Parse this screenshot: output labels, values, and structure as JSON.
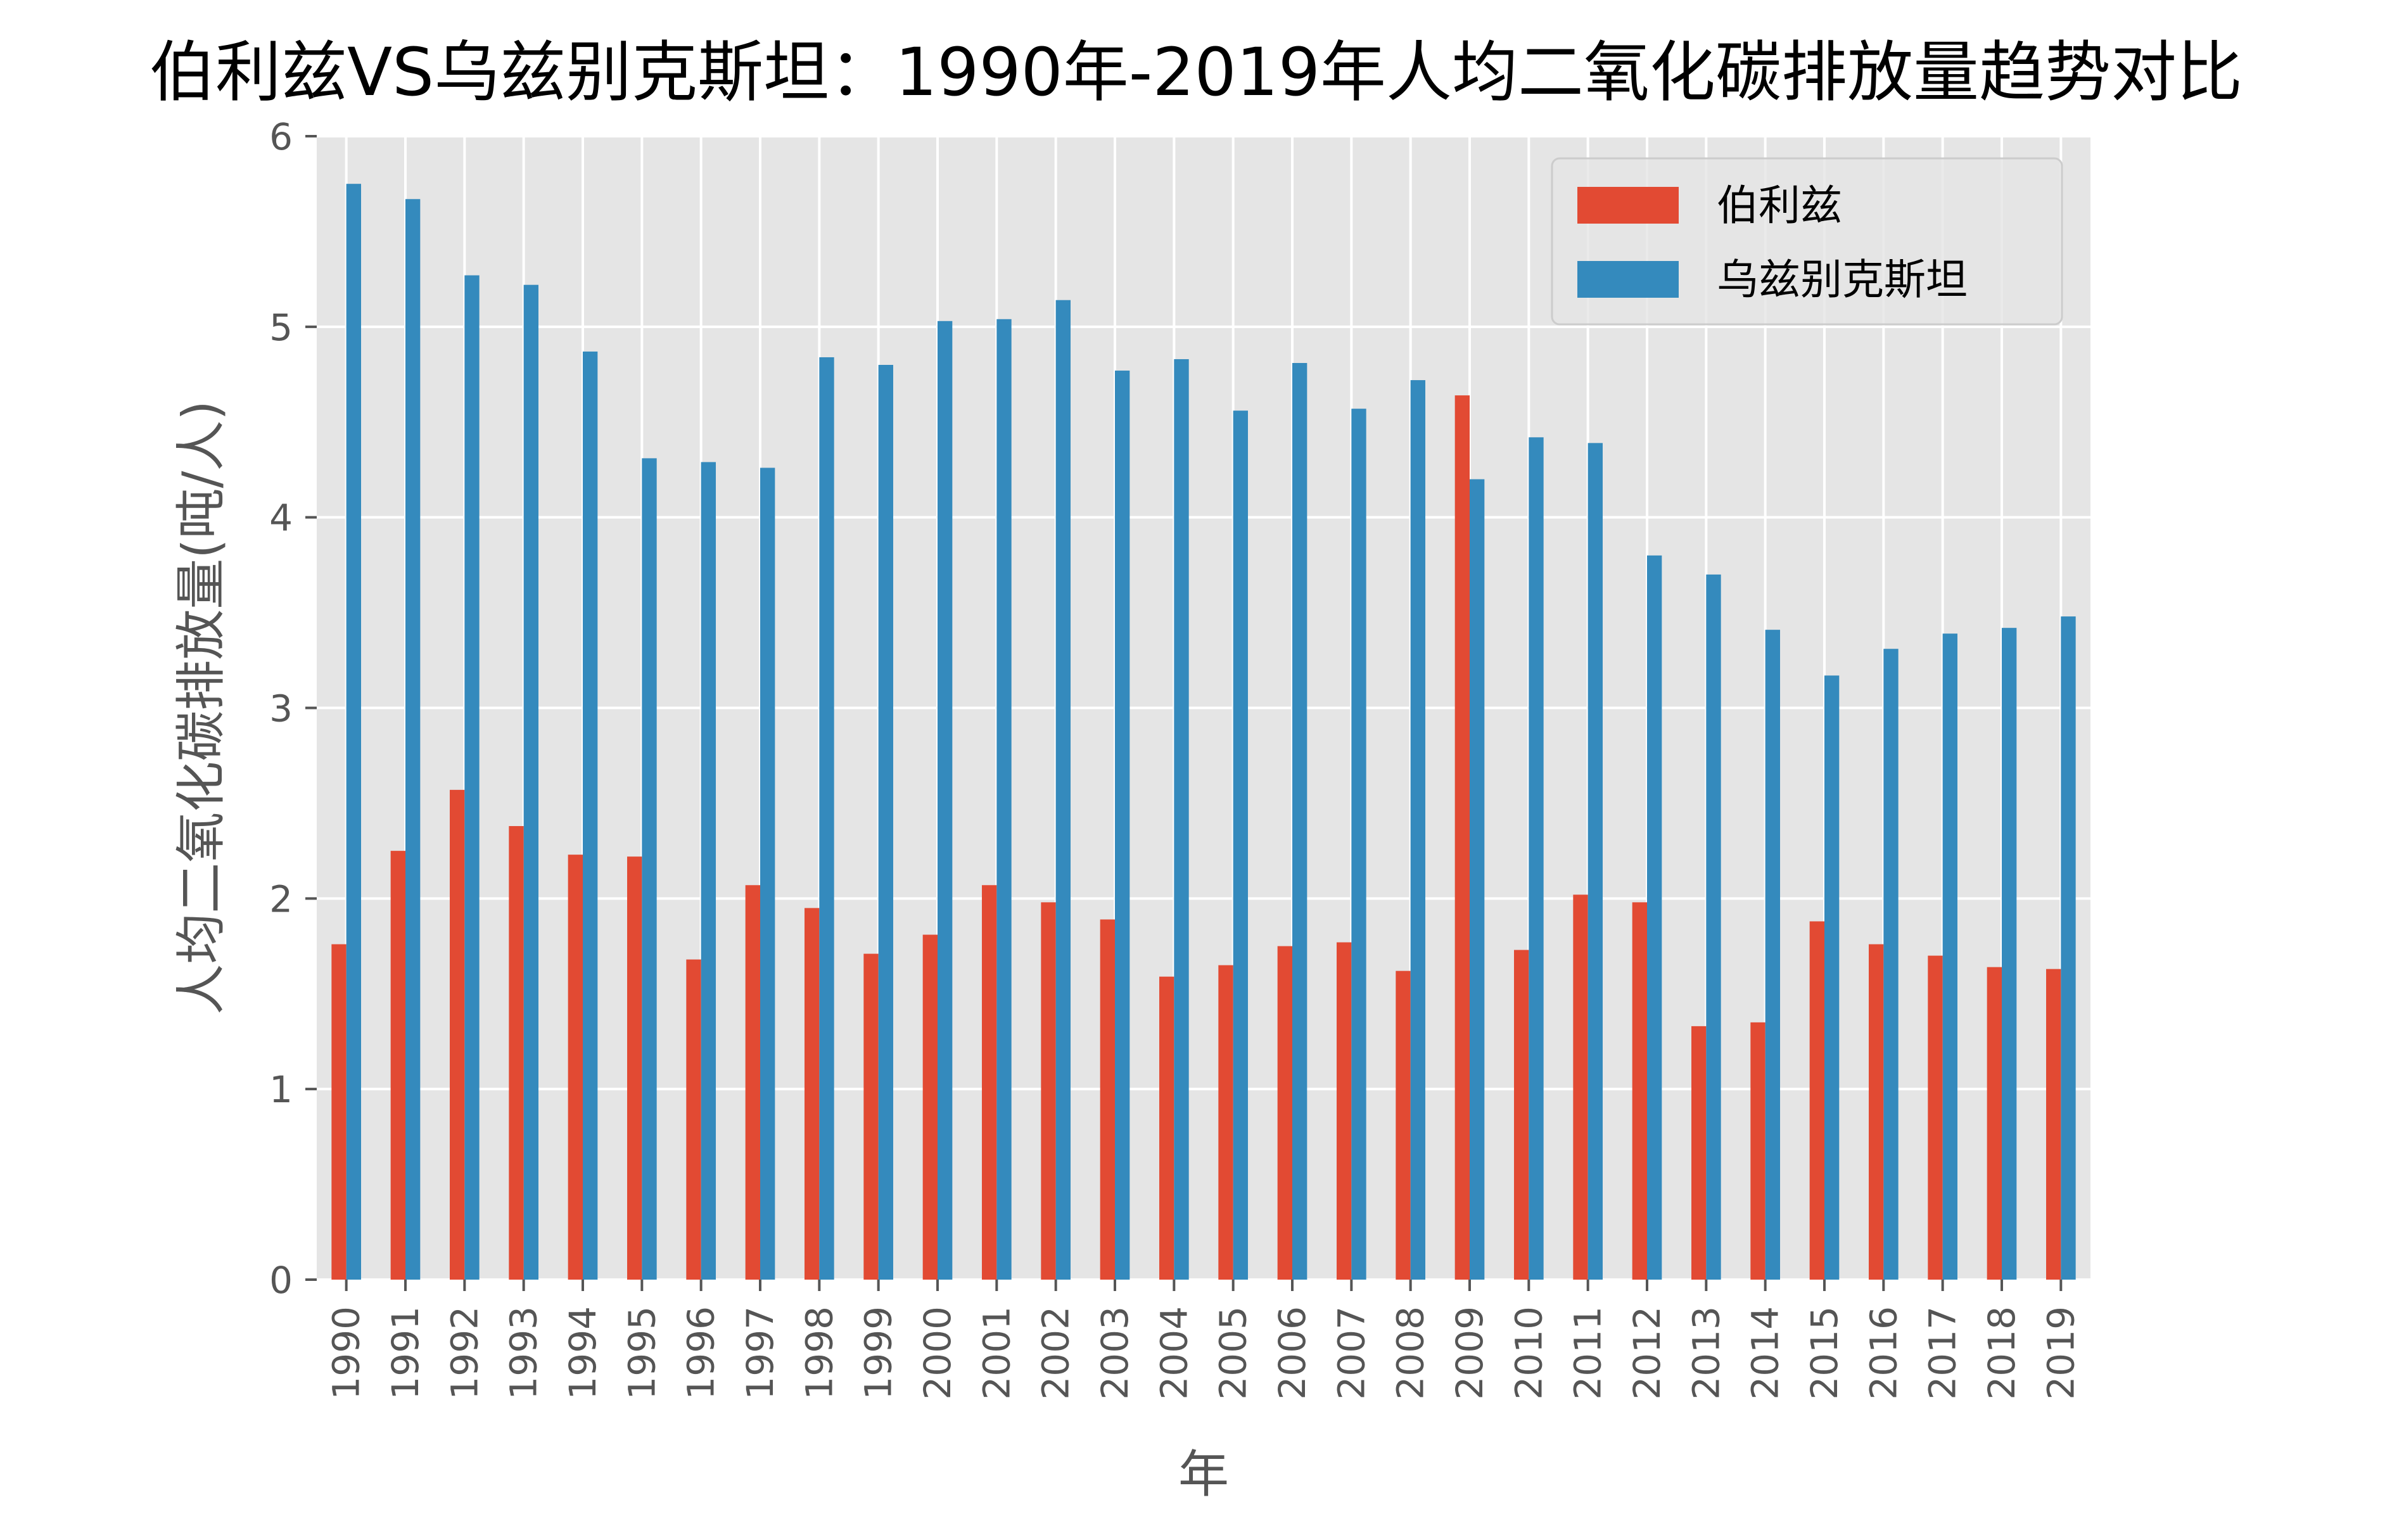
{
  "chart_data": {
    "type": "bar",
    "title": "伯利兹VS乌兹别克斯坦：1990年-2019年人均二氧化碳排放量趋势对比",
    "xlabel": "年",
    "ylabel": "人均二氧化碳排放量(吨/人)",
    "ylim": [
      0,
      6
    ],
    "yticks": [
      0,
      1,
      2,
      3,
      4,
      5,
      6
    ],
    "grid": true,
    "legend_position": "top-right",
    "categories": [
      "1990",
      "1991",
      "1992",
      "1993",
      "1994",
      "1995",
      "1996",
      "1997",
      "1998",
      "1999",
      "2000",
      "2001",
      "2002",
      "2003",
      "2004",
      "2005",
      "2006",
      "2007",
      "2008",
      "2009",
      "2010",
      "2011",
      "2012",
      "2013",
      "2014",
      "2015",
      "2016",
      "2017",
      "2018",
      "2019"
    ],
    "series": [
      {
        "name": "伯利兹",
        "color": "#E24A33",
        "values": [
          1.76,
          2.25,
          2.57,
          2.38,
          2.23,
          2.22,
          1.68,
          2.07,
          1.95,
          1.71,
          1.81,
          2.07,
          1.98,
          1.89,
          1.59,
          1.65,
          1.75,
          1.77,
          1.62,
          4.64,
          1.73,
          2.02,
          1.98,
          1.33,
          1.35,
          1.88,
          1.76,
          1.7,
          1.64,
          1.63
        ]
      },
      {
        "name": "乌兹别克斯坦",
        "color": "#348ABD",
        "values": [
          5.75,
          5.67,
          5.27,
          5.22,
          4.87,
          4.31,
          4.29,
          4.26,
          4.84,
          4.8,
          5.03,
          5.04,
          5.14,
          4.77,
          4.83,
          4.56,
          4.81,
          4.57,
          4.72,
          4.2,
          4.42,
          4.39,
          3.8,
          3.7,
          3.41,
          3.17,
          3.31,
          3.39,
          3.42,
          3.48
        ]
      }
    ]
  }
}
